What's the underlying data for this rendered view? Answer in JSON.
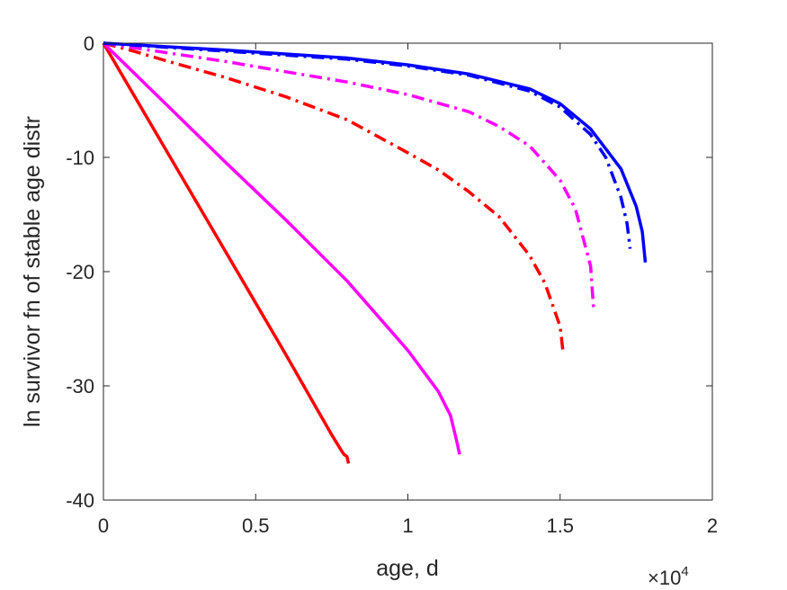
{
  "chart_data": {
    "type": "line",
    "title": "",
    "xlabel": "age, d",
    "ylabel": "ln survivor fn of stable age distr",
    "x_multiplier_label": "×10",
    "x_multiplier_exp": "4",
    "xlim": [
      0,
      2
    ],
    "ylim": [
      -40,
      0
    ],
    "xticks": [
      0,
      0.5,
      1,
      1.5,
      2
    ],
    "xtick_labels": [
      "0",
      "0.5",
      "1",
      "1.5",
      "2"
    ],
    "yticks": [
      0,
      -10,
      -20,
      -30,
      -40
    ],
    "ytick_labels": [
      "0",
      "-10",
      "-20",
      "-30",
      "-40"
    ],
    "grid": false,
    "legend": "none",
    "series": [
      {
        "color": "#ff0000",
        "dash": "solid",
        "x": [
          0,
          0.2,
          0.4,
          0.6,
          0.75,
          0.78,
          0.79,
          0.8,
          0.805
        ],
        "y": [
          0,
          -9.1,
          -18.2,
          -27.3,
          -34.3,
          -35.6,
          -36.0,
          -36.2,
          -36.8
        ]
      },
      {
        "color": "#ff00ff",
        "dash": "solid",
        "x": [
          0,
          0.2,
          0.4,
          0.6,
          0.8,
          1.0,
          1.1,
          1.14,
          1.16,
          1.17
        ],
        "y": [
          0,
          -5.2,
          -10.4,
          -15.5,
          -20.8,
          -26.9,
          -30.5,
          -32.6,
          -34.8,
          -36.0
        ]
      },
      {
        "color": "#ff0000",
        "dash": "dashdot",
        "x": [
          0,
          0.1,
          0.2,
          0.4,
          0.6,
          0.8,
          1.0,
          1.1,
          1.2,
          1.3,
          1.4,
          1.45,
          1.5,
          1.51
        ],
        "y": [
          0,
          -0.7,
          -1.5,
          -3.0,
          -4.7,
          -6.7,
          -9.6,
          -11.1,
          -13.0,
          -15.2,
          -18.6,
          -21.0,
          -24.8,
          -27.1
        ]
      },
      {
        "color": "#ff00ff",
        "dash": "dashdot",
        "x": [
          0,
          0.2,
          0.4,
          0.6,
          0.8,
          1.0,
          1.2,
          1.3,
          1.4,
          1.5,
          1.55,
          1.6,
          1.61
        ],
        "y": [
          0,
          -0.8,
          -1.6,
          -2.5,
          -3.4,
          -4.5,
          -6.0,
          -7.3,
          -9.0,
          -12.0,
          -14.5,
          -19.5,
          -23.3
        ]
      },
      {
        "color": "#0000ff",
        "dash": "dashdot",
        "x": [
          0,
          0.4,
          0.8,
          1.0,
          1.2,
          1.4,
          1.5,
          1.6,
          1.65,
          1.7,
          1.72,
          1.73
        ],
        "y": [
          0,
          -0.7,
          -1.4,
          -2.0,
          -2.8,
          -4.2,
          -5.6,
          -8.0,
          -10.0,
          -13.5,
          -15.8,
          -18.0
        ]
      },
      {
        "color": "#0000ff",
        "dash": "solid",
        "x": [
          0,
          0.4,
          0.8,
          1.0,
          1.2,
          1.4,
          1.5,
          1.6,
          1.7,
          1.75,
          1.77,
          1.78
        ],
        "y": [
          0,
          -0.6,
          -1.3,
          -1.9,
          -2.7,
          -4.0,
          -5.3,
          -7.5,
          -11.0,
          -14.3,
          -16.5,
          -19.2
        ]
      }
    ]
  }
}
